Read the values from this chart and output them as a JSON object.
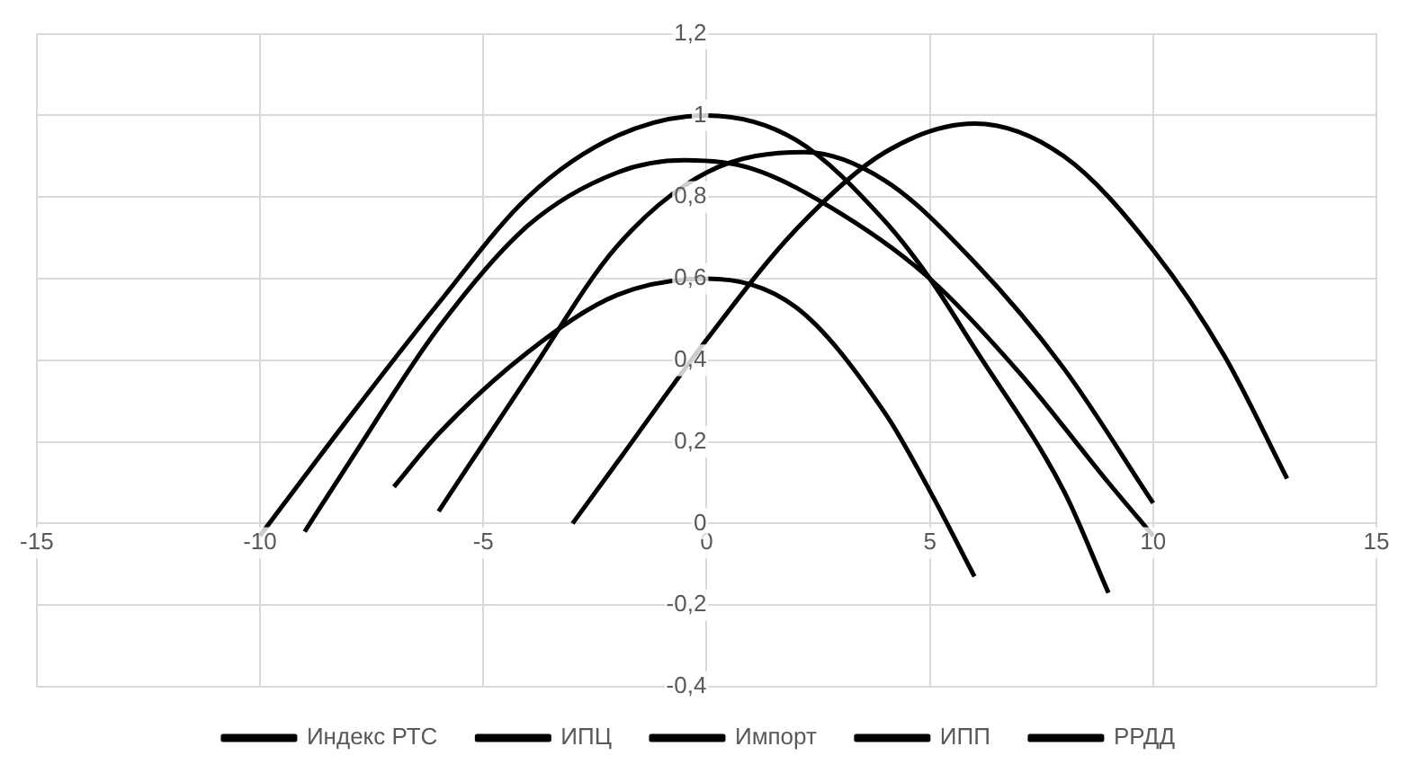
{
  "chart_data": {
    "type": "line",
    "xlim": [
      -15,
      15
    ],
    "xticks": [
      -15,
      -10,
      -5,
      0,
      5,
      10,
      15
    ],
    "ylim": [
      -0.4,
      1.2
    ],
    "yticks": [
      {
        "value": -0.4,
        "label": "-0,4"
      },
      {
        "value": -0.2,
        "label": "-0,2"
      },
      0,
      {
        "value": 0.2,
        "label": "0,2"
      },
      {
        "value": 0.4,
        "label": "0,4"
      },
      {
        "value": 0.6,
        "label": "0,6"
      },
      {
        "value": 0.8,
        "label": "0,8"
      },
      1,
      {
        "value": 1.2,
        "label": "1,2"
      }
    ],
    "grid": true,
    "legend": "bottom",
    "marker": "none",
    "line_style": "solid",
    "series": [
      {
        "name": "Индекс РТС",
        "color": "#000000",
        "x": [
          -10,
          -8,
          -6,
          -4,
          -2,
          0,
          2,
          4,
          5,
          6,
          8,
          9
        ],
        "values": [
          -0.03,
          0.26,
          0.54,
          0.8,
          0.95,
          1.0,
          0.94,
          0.74,
          0.6,
          0.43,
          0.08,
          -0.17
        ]
      },
      {
        "name": "ИПЦ",
        "color": "#000000",
        "x": [
          -9,
          -8,
          -6,
          -4,
          -2,
          -0.5,
          1,
          3,
          5,
          7,
          9,
          10
        ],
        "values": [
          -0.02,
          0.15,
          0.48,
          0.73,
          0.86,
          0.89,
          0.87,
          0.76,
          0.6,
          0.37,
          0.1,
          -0.03
        ]
      },
      {
        "name": "Импорт",
        "color": "#000000",
        "x": [
          -7,
          -6,
          -4,
          -2,
          0,
          2,
          4,
          5,
          6
        ],
        "values": [
          0.09,
          0.22,
          0.42,
          0.56,
          0.6,
          0.53,
          0.27,
          0.08,
          -0.13
        ]
      },
      {
        "name": "ИПП",
        "color": "#000000",
        "x": [
          -6,
          -4,
          -2,
          0,
          2.2,
          4,
          6,
          8,
          10
        ],
        "values": [
          0.03,
          0.36,
          0.68,
          0.86,
          0.91,
          0.84,
          0.64,
          0.38,
          0.05
        ]
      },
      {
        "name": "РРДД",
        "color": "#000000",
        "x": [
          -3,
          -2,
          0,
          2,
          4,
          6,
          8,
          10,
          11.6,
          13
        ],
        "values": [
          0.0,
          0.15,
          0.45,
          0.72,
          0.91,
          0.98,
          0.9,
          0.67,
          0.41,
          0.11
        ]
      }
    ]
  }
}
